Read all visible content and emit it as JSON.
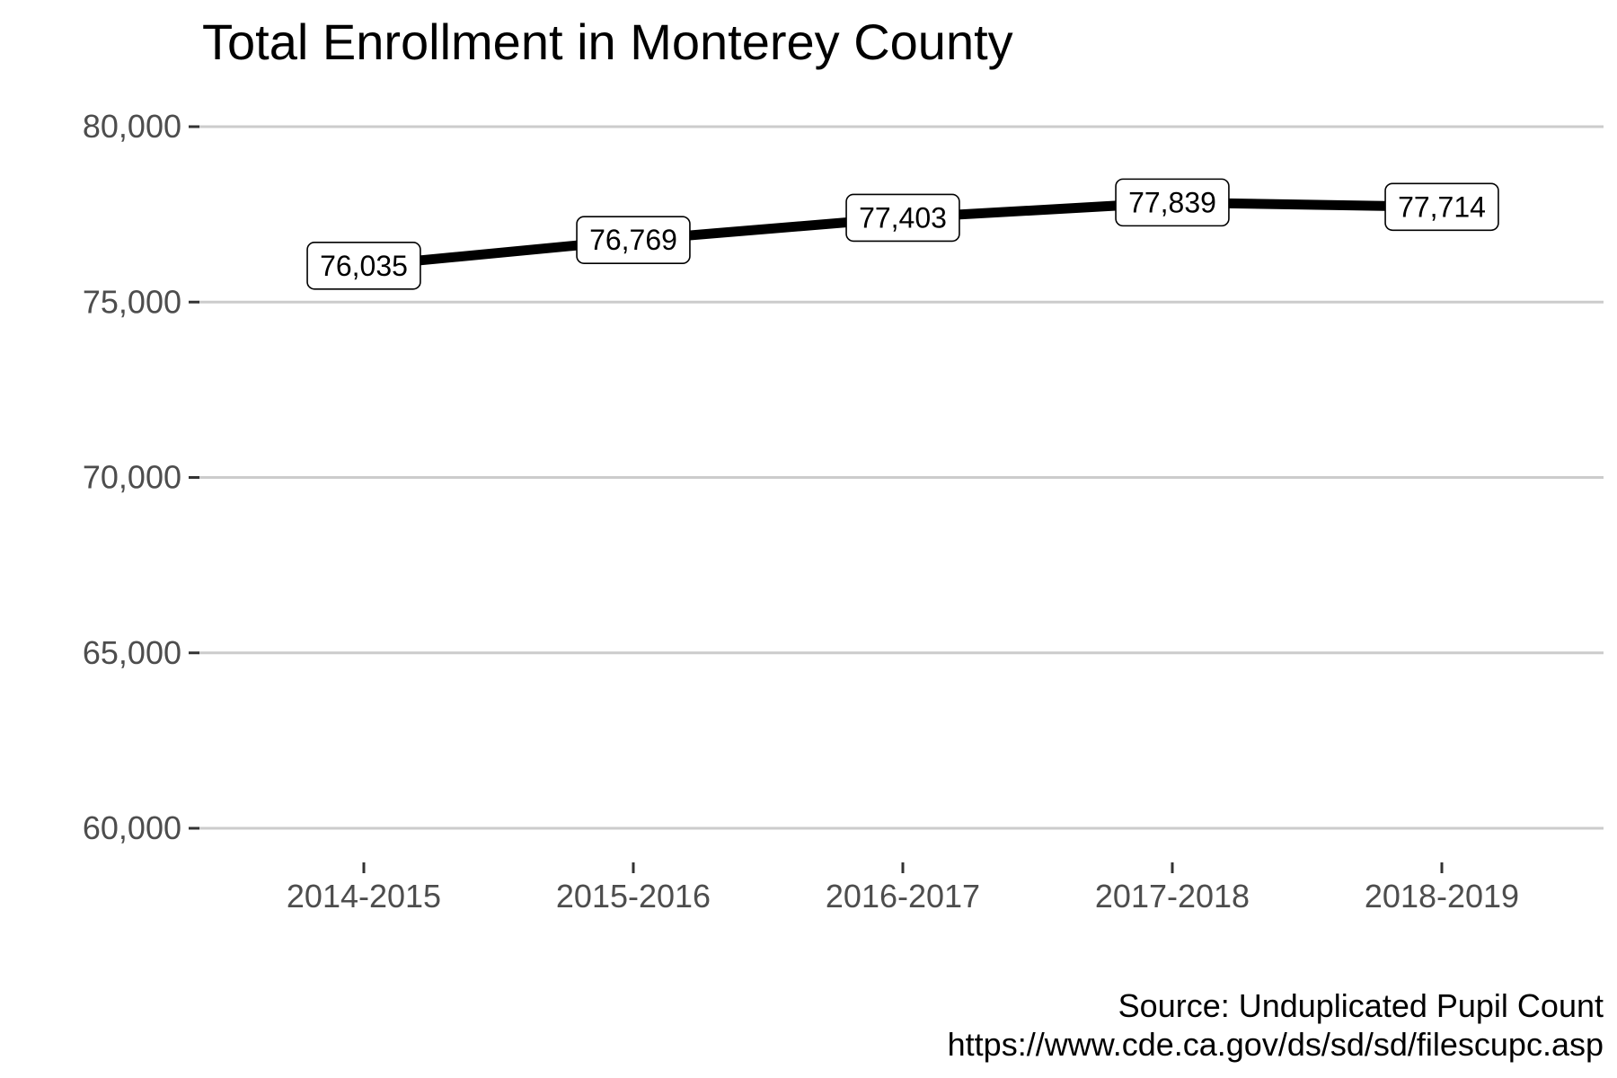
{
  "chart_data": {
    "type": "line",
    "title": "Total Enrollment in Monterey County",
    "xlabel": "",
    "ylabel": "",
    "categories": [
      "2014-2015",
      "2015-2016",
      "2016-2017",
      "2017-2018",
      "2018-2019"
    ],
    "series": [
      {
        "values": [
          76035,
          76769,
          77403,
          77839,
          77714
        ],
        "color": "#000000"
      }
    ],
    "data_labels": [
      "76,035",
      "76,769",
      "77,403",
      "77,839",
      "77,714"
    ],
    "ylim": [
      60000,
      80000
    ],
    "yticks": [
      60000,
      65000,
      70000,
      75000,
      80000
    ],
    "ytick_labels": [
      "60,000",
      "65,000",
      "70,000",
      "75,000",
      "80,000"
    ],
    "grid": "horizontal-major",
    "gridline_color": "#cccccc",
    "legend": "none",
    "caption": [
      "Source: Unduplicated Pupil Count ",
      "https://www.cde.ca.gov/ds/sd/sd/filescupc.asp"
    ]
  }
}
